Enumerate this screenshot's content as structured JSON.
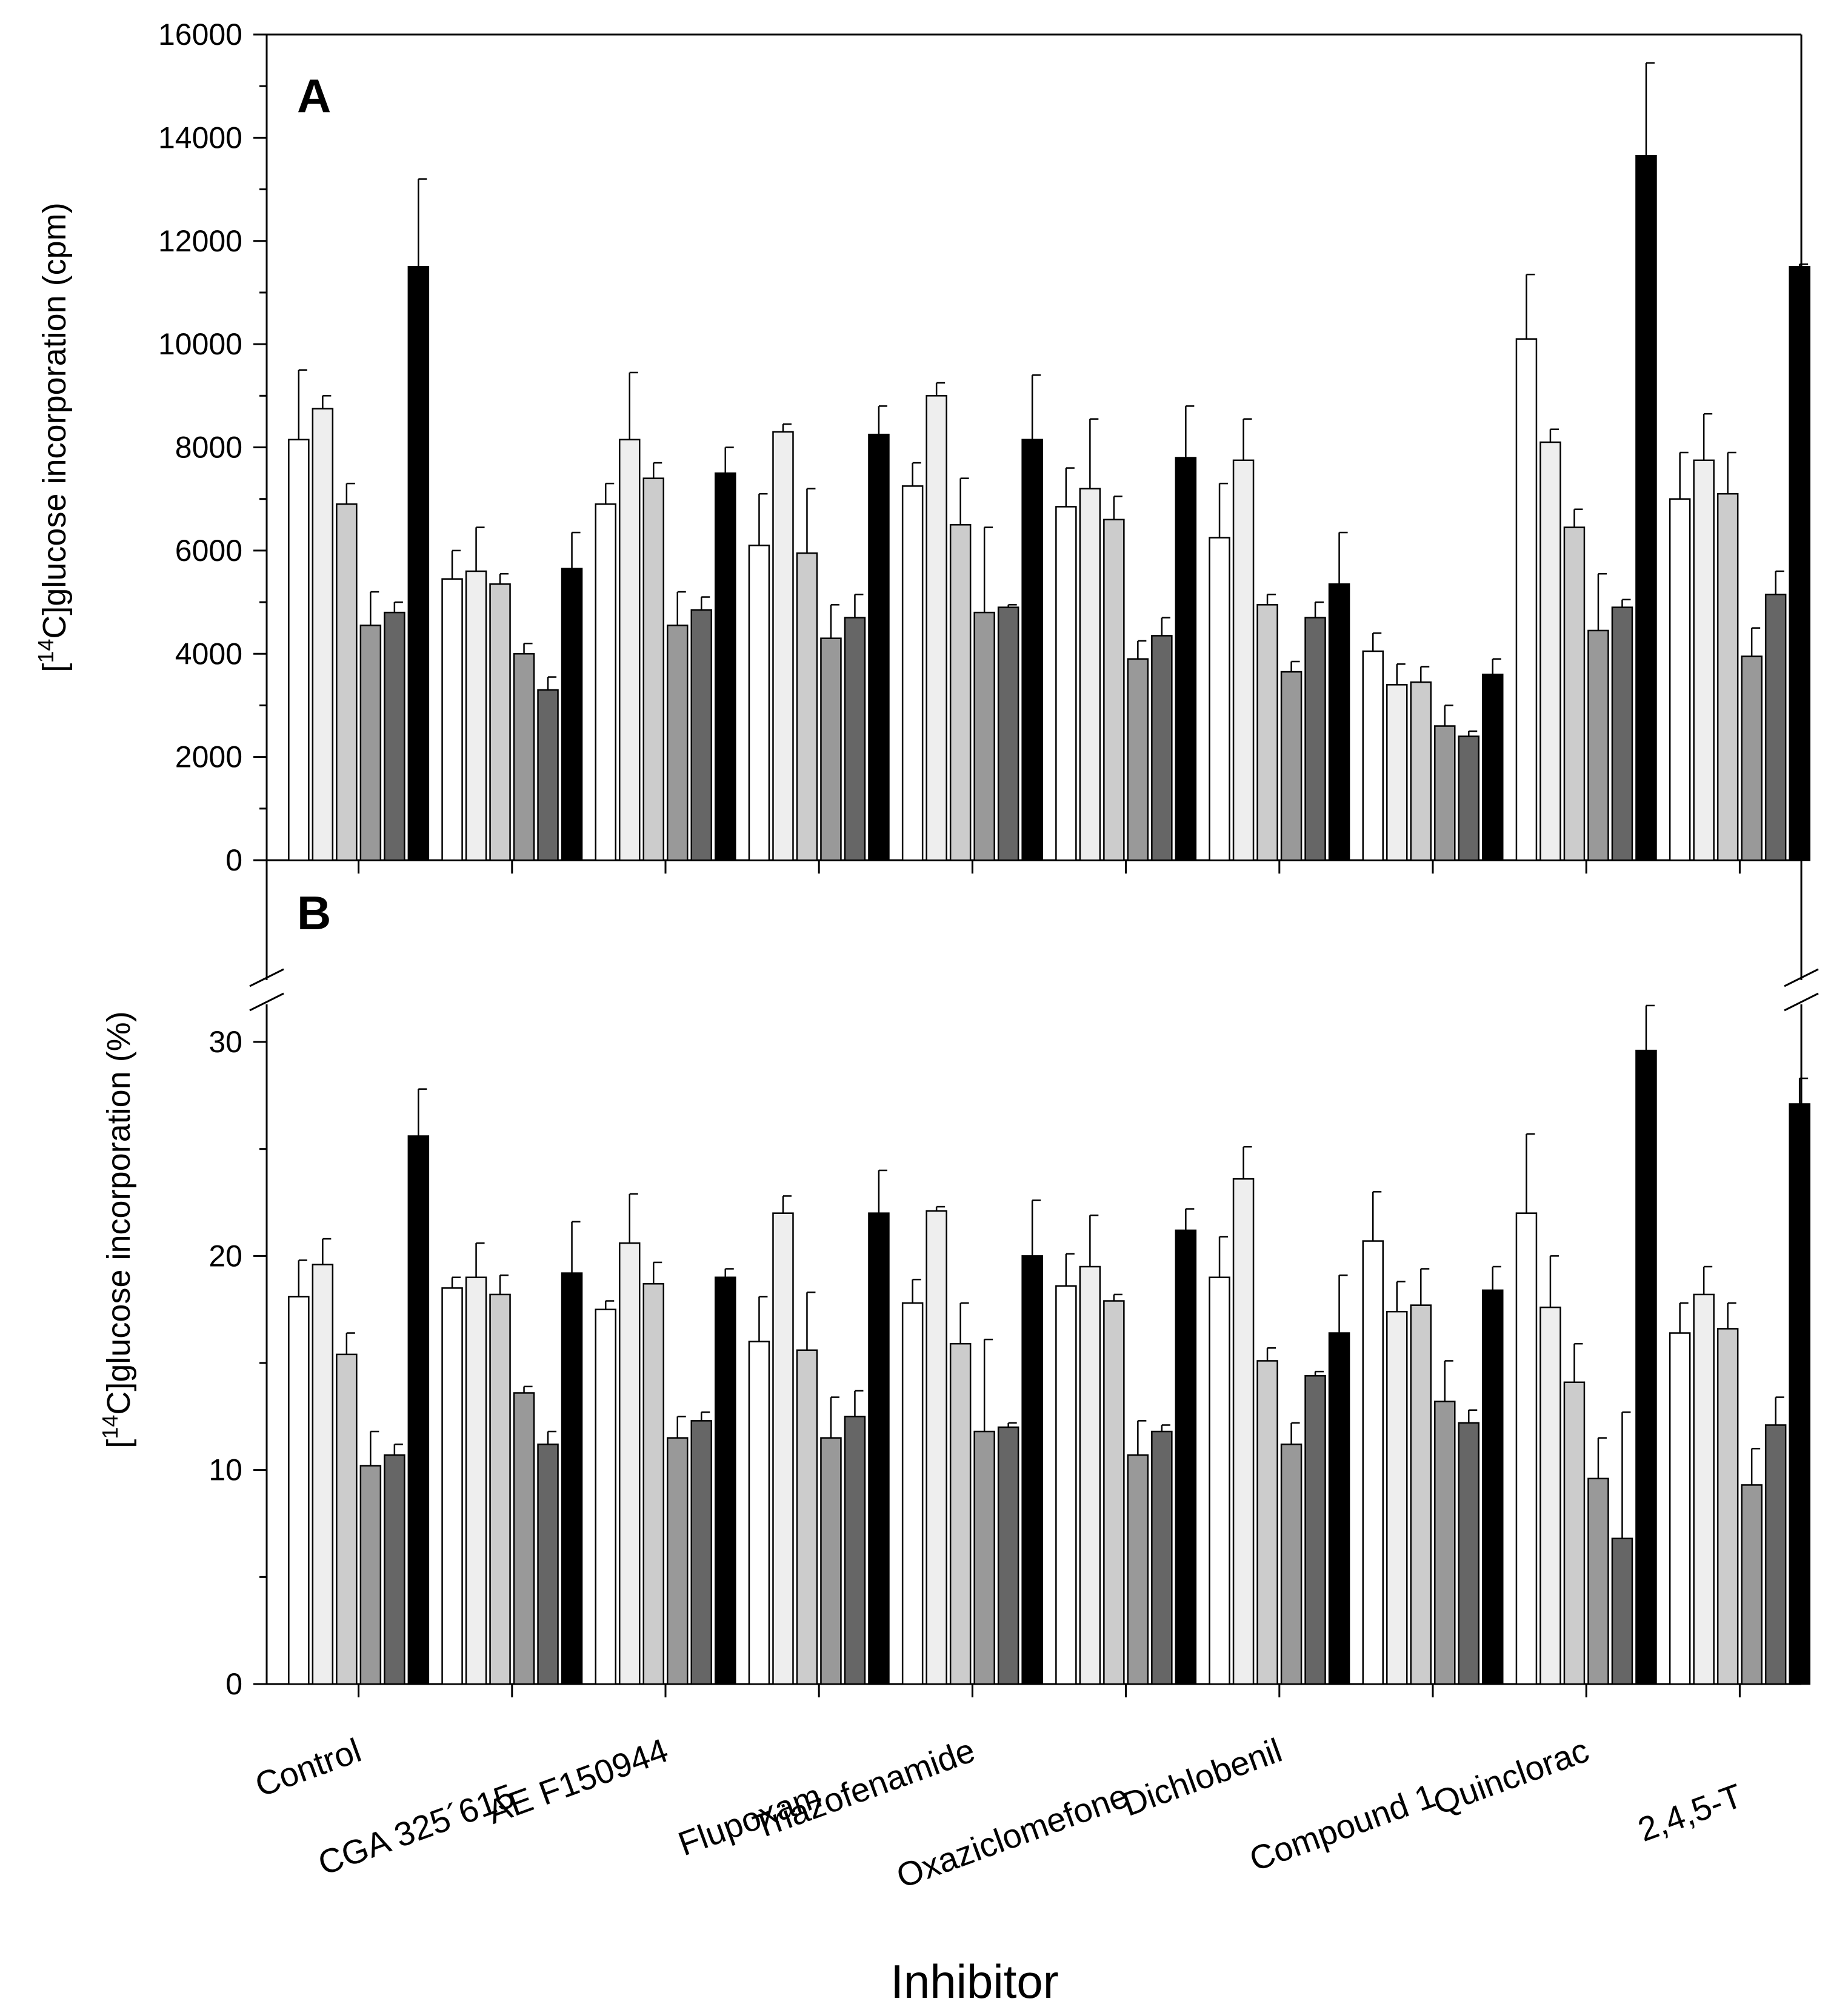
{
  "chart_data": {
    "type": "bar",
    "xlabel": "Inhibitor",
    "categories": [
      "Control",
      "CGA 325´615",
      "AE F150944",
      "Flupoxam",
      "Triazofenamide",
      "Oxaziclomefone",
      "Dichlobenil",
      "Compound 1",
      "Quinclorac",
      "2,4,5-T"
    ],
    "series_colors": [
      "#ffffff",
      "#eeeeee",
      "#cccccc",
      "#999999",
      "#666666",
      "#000000"
    ],
    "panels": [
      {
        "label": "A",
        "ylabel_sup": "14",
        "ylabel_text": "C]glucose incorporation (cpm)",
        "ylim": [
          0,
          16000
        ],
        "yticks": [
          0,
          2000,
          4000,
          6000,
          8000,
          10000,
          12000,
          14000,
          16000
        ],
        "tick_labels": [
          "0",
          "2000",
          "4000",
          "6000",
          "8000",
          "10000",
          "12000",
          "14000",
          "16000"
        ],
        "values": [
          [
            8150,
            8750,
            6900,
            4550,
            4800,
            11500
          ],
          [
            5450,
            5600,
            5350,
            4000,
            3300,
            5650
          ],
          [
            6900,
            8150,
            7400,
            4550,
            4850,
            7500
          ],
          [
            6100,
            8300,
            5950,
            4300,
            4700,
            8250
          ],
          [
            7250,
            9000,
            6500,
            4800,
            4900,
            8150
          ],
          [
            6850,
            7200,
            6600,
            3900,
            4350,
            7800
          ],
          [
            6250,
            7750,
            4950,
            3650,
            4700,
            5350
          ],
          [
            4050,
            3400,
            3450,
            2600,
            2400,
            3600
          ],
          [
            10100,
            8100,
            6450,
            4450,
            4900,
            13650
          ],
          [
            7000,
            7750,
            7100,
            3950,
            5150,
            11500
          ]
        ],
        "errors": [
          [
            1350,
            250,
            400,
            650,
            200,
            1700
          ],
          [
            550,
            850,
            200,
            200,
            250,
            700
          ],
          [
            400,
            1300,
            300,
            650,
            250,
            500
          ],
          [
            1000,
            150,
            1250,
            650,
            450,
            550
          ],
          [
            450,
            250,
            900,
            1650,
            50,
            1250
          ],
          [
            750,
            1350,
            450,
            350,
            350,
            1000
          ],
          [
            1050,
            800,
            200,
            200,
            300,
            1000
          ],
          [
            350,
            400,
            300,
            400,
            100,
            300
          ],
          [
            1250,
            250,
            350,
            1100,
            150,
            1800
          ],
          [
            900,
            900,
            800,
            550,
            450,
            50
          ]
        ]
      },
      {
        "label": "B",
        "ylabel_sup": "14",
        "ylabel_text": "C]glucose incorporation (%)",
        "ylim": [
          0,
          30
        ],
        "yticks": [
          0,
          10,
          20,
          30
        ],
        "tick_labels": [
          "0",
          "10",
          "20",
          "30"
        ],
        "values": [
          [
            18.1,
            19.6,
            15.4,
            10.2,
            10.7,
            25.6
          ],
          [
            18.5,
            19.0,
            18.2,
            13.6,
            11.2,
            19.2
          ],
          [
            17.5,
            20.6,
            18.7,
            11.5,
            12.3,
            19.0
          ],
          [
            16.0,
            22.0,
            15.6,
            11.5,
            12.5,
            22.0
          ],
          [
            17.8,
            22.1,
            15.9,
            11.8,
            12.0,
            20.0
          ],
          [
            18.6,
            19.5,
            17.9,
            10.7,
            11.8,
            21.2
          ],
          [
            19.0,
            23.6,
            15.1,
            11.2,
            14.4,
            16.4
          ],
          [
            20.7,
            17.4,
            17.7,
            13.2,
            12.2,
            18.4
          ],
          [
            22.0,
            17.6,
            14.1,
            9.6,
            6.8,
            29.6
          ],
          [
            16.4,
            18.2,
            16.6,
            9.3,
            12.1,
            27.1
          ]
        ],
        "errors": [
          [
            1.7,
            1.2,
            1.0,
            1.6,
            0.5,
            2.2
          ],
          [
            0.5,
            1.6,
            0.9,
            0.3,
            0.6,
            2.4
          ],
          [
            0.4,
            2.3,
            1.0,
            1.0,
            0.4,
            0.4
          ],
          [
            2.1,
            0.8,
            2.7,
            1.9,
            1.2,
            2.0
          ],
          [
            1.1,
            0.2,
            1.9,
            4.3,
            0.2,
            2.6
          ],
          [
            1.5,
            2.4,
            0.3,
            1.6,
            0.3,
            1.0
          ],
          [
            1.9,
            1.5,
            0.6,
            1.0,
            0.2,
            2.7
          ],
          [
            2.3,
            1.4,
            1.7,
            1.9,
            0.6,
            1.1
          ],
          [
            3.7,
            2.4,
            1.8,
            1.9,
            5.9,
            2.1
          ],
          [
            1.4,
            1.3,
            1.2,
            1.7,
            1.3,
            1.2
          ]
        ]
      }
    ]
  }
}
